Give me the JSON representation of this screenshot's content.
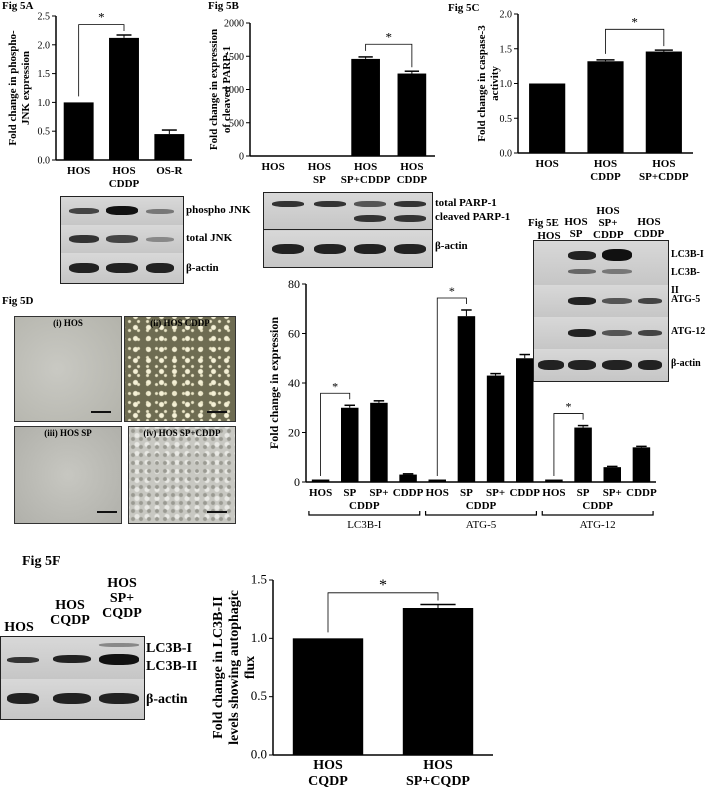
{
  "panels": {
    "a": {
      "label": "Fig 5A"
    },
    "b": {
      "label": "Fig 5B"
    },
    "c": {
      "label": "Fig 5C"
    },
    "d": {
      "label": "Fig 5D"
    },
    "e": {
      "label": "Fig 5E"
    },
    "f": {
      "label": "Fig 5F"
    }
  },
  "chart_data": [
    {
      "id": "fig5a",
      "type": "bar",
      "ylabel": "Fold change in phospho-\nJNK expression",
      "categories": [
        "HOS",
        "HOS\nCDDP",
        "OS-R"
      ],
      "values": [
        1.0,
        2.12,
        0.45
      ],
      "errors": [
        0,
        0.05,
        0.07
      ],
      "ylim": [
        0,
        2.5
      ],
      "yticks": [
        "0.0",
        "0.5",
        "1.0",
        "1.5",
        "2.0",
        "2.5"
      ],
      "annotation": "*"
    },
    {
      "id": "fig5b",
      "type": "bar",
      "ylabel": "Fold change in expression\nof cleaved PARP-1",
      "categories": [
        "HOS",
        "HOS\nSP",
        "HOS\nSP+CDDP",
        "HOS\nCDDP"
      ],
      "values": [
        0,
        0,
        1460,
        1240
      ],
      "errors": [
        0,
        0,
        30,
        35
      ],
      "ylim": [
        0,
        2000
      ],
      "yticks": [
        "0",
        "500",
        "1000",
        "1500",
        "2000"
      ],
      "annotation": "*"
    },
    {
      "id": "fig5c",
      "type": "bar",
      "ylabel": "Fold change in caspase-3\nactivity",
      "categories": [
        "HOS",
        "HOS\nCDDP",
        "HOS\nSP+CDDP"
      ],
      "values": [
        1.0,
        1.32,
        1.46
      ],
      "errors": [
        0,
        0.02,
        0.02
      ],
      "ylim": [
        0,
        2.0
      ],
      "yticks": [
        "0.0",
        "0.5",
        "1.0",
        "1.5",
        "2.0"
      ],
      "annotation": "*"
    },
    {
      "id": "fig5e_chart",
      "type": "bar",
      "ylabel": "Fold change in expression",
      "categories": [
        "HOS",
        "SP",
        "SP+",
        "CDDP",
        "HOS",
        "SP",
        "SP+",
        "CDDP",
        "HOS",
        "SP",
        "SP+",
        "CDDP"
      ],
      "sub_labels": [
        "CDDP",
        "CDDP",
        "CDDP"
      ],
      "groups": [
        "LC3B-I",
        "ATG-5",
        "ATG-12"
      ],
      "values": [
        1,
        30,
        32,
        3,
        1,
        67,
        43,
        50,
        1,
        22,
        6,
        14
      ],
      "errors": [
        0,
        1,
        0.8,
        0.3,
        0,
        2.5,
        0.8,
        1.5,
        0,
        0.8,
        0.3,
        0.4
      ],
      "ylim": [
        0,
        80
      ],
      "yticks": [
        "0",
        "20",
        "40",
        "60",
        "80"
      ],
      "annotations": [
        "*",
        "*",
        "*"
      ]
    },
    {
      "id": "fig5f",
      "type": "bar",
      "ylabel": "Fold change in LC3B-II\nlevels showing autophagic\nflux",
      "categories": [
        "HOS\nCQDP",
        "HOS\nSP+CQDP"
      ],
      "values": [
        1.0,
        1.26
      ],
      "errors": [
        0,
        0.03
      ],
      "ylim": [
        0,
        1.5
      ],
      "yticks": [
        "0.0",
        "0.5",
        "1.0",
        "1.5"
      ],
      "annotation": "*"
    }
  ],
  "blots": {
    "a": {
      "rows": [
        "phospho JNK",
        "total JNK",
        "β-actin"
      ]
    },
    "b": {
      "rows": [
        "total PARP-1\ncleaved PARP-1",
        "β-actin"
      ]
    },
    "e": {
      "lanes": [
        "HOS",
        "HOS\nSP",
        "HOS\nSP+\nCDDP",
        "HOS\nCDDP"
      ],
      "rows": [
        "LC3B-I\nLC3B-II",
        "ATG-5",
        "ATG-12",
        "β-actin"
      ]
    },
    "f": {
      "lanes": [
        "HOS",
        "HOS\nCQDP",
        "HOS\nSP+\nCQDP"
      ],
      "rows": [
        "LC3B-I\nLC3B-II",
        "β-actin"
      ]
    }
  },
  "micrographs": {
    "labels": [
      "(i) HOS",
      "(ii) HOS CDDP",
      "(iii) HOS SP",
      "(iv) HOS SP+CDDP"
    ]
  }
}
